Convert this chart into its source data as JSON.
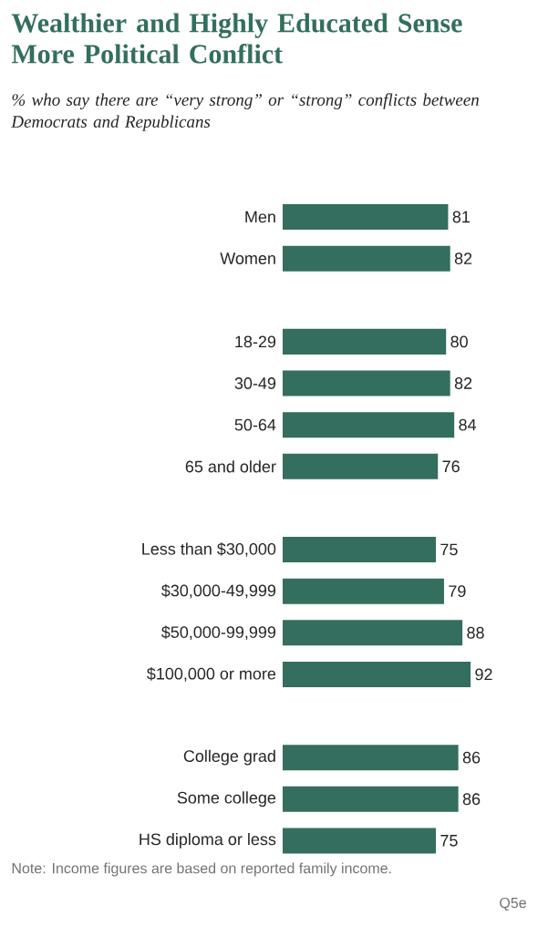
{
  "chart_data": {
    "type": "bar",
    "orientation": "horizontal",
    "title": "Wealthier and Highly Educated Sense More Political Conflict",
    "subtitle": "% who say there are “very strong” or “strong” conflicts between Democrats and Republicans",
    "categories": [
      "Men",
      "Women",
      null,
      "18-29",
      "30-49",
      "50-64",
      "65 and older",
      null,
      "Less than $30,000",
      "$30,000-49,999",
      "$50,000-99,999",
      "$100,000 or more",
      null,
      "College grad",
      "Some college",
      "HS diploma or less"
    ],
    "values": [
      81,
      82,
      null,
      80,
      82,
      84,
      76,
      null,
      75,
      79,
      88,
      92,
      null,
      86,
      86,
      75
    ],
    "color": "#336e5e",
    "data_labels": true,
    "annotations": [
      "Note: Income figures are based on reported family income.",
      "Q5e"
    ]
  }
}
